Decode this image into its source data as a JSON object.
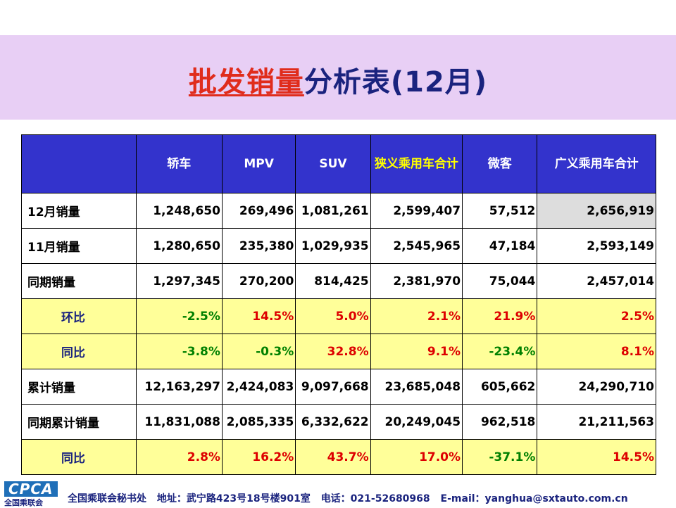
{
  "title": {
    "highlight": "批发销量",
    "rest": "分析表(12月)"
  },
  "header": [
    "轿车",
    "MPV",
    "SUV",
    "狭义乘用车合计",
    "微客",
    "广义乘用车合计"
  ],
  "rows": [
    {
      "label": "12月销量",
      "cells": [
        "1,248,650",
        "269,496",
        "1,081,261",
        "2,599,407",
        "57,512",
        "2,656,919"
      ]
    },
    {
      "label": "11月销量",
      "cells": [
        "1,280,650",
        "235,380",
        "1,029,935",
        "2,545,965",
        "47,184",
        "2,593,149"
      ]
    },
    {
      "label": "同期销量",
      "cells": [
        "1,297,345",
        "270,200",
        "814,425",
        "2,381,970",
        "75,044",
        "2,457,014"
      ]
    },
    {
      "label": "环比",
      "cells": [
        "-2.5%",
        "14.5%",
        "5.0%",
        "2.1%",
        "21.9%",
        "2.5%"
      ]
    },
    {
      "label": "同比",
      "cells": [
        "-3.8%",
        "-0.3%",
        "32.8%",
        "9.1%",
        "-23.4%",
        "8.1%"
      ]
    },
    {
      "label": "累计销量",
      "cells": [
        "12,163,297",
        "2,424,083",
        "9,097,668",
        "23,685,048",
        "605,662",
        "24,290,710"
      ]
    },
    {
      "label": "同期累计销量",
      "cells": [
        "11,831,088",
        "2,085,335",
        "6,332,622",
        "20,249,045",
        "962,518",
        "21,211,563"
      ]
    },
    {
      "label": "同比",
      "cells": [
        "2.8%",
        "16.2%",
        "43.7%",
        "17.0%",
        "-37.1%",
        "14.5%"
      ]
    }
  ],
  "colors": {
    "green": "#008000",
    "red": "#dd0000",
    "header_bg": "#3333cc",
    "ratio_bg": "#ffff99"
  },
  "footer": {
    "logo": "CPCA",
    "logo_sub": "全国乘联会",
    "org": "全国乘联会秘书处",
    "address": "地址：武宁路423号18号楼901室",
    "phone": "电话：021-52680968",
    "email": "E-mail：yanghua@sxtauto.com.cn"
  }
}
